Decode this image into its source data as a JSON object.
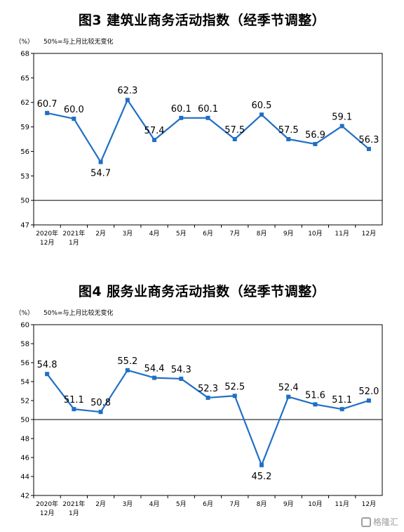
{
  "chart_data": [
    {
      "type": "line",
      "title": "图3  建筑业商务活动指数（经季节调整）",
      "unit": "（%）",
      "note": "50%=与上月比较无变化",
      "categories": [
        [
          "2020年",
          "12月"
        ],
        [
          "2021年",
          "1月"
        ],
        [
          "2月"
        ],
        [
          "3月"
        ],
        [
          "4月"
        ],
        [
          "5月"
        ],
        [
          "6月"
        ],
        [
          "7月"
        ],
        [
          "8月"
        ],
        [
          "9月"
        ],
        [
          "10月"
        ],
        [
          "11月"
        ],
        [
          "12月"
        ]
      ],
      "values": [
        60.7,
        60.0,
        54.7,
        62.3,
        57.4,
        60.1,
        60.1,
        57.5,
        60.5,
        57.5,
        56.9,
        59.1,
        56.3
      ],
      "labels": [
        "60.7",
        "60.0",
        "54.7",
        "62.3",
        "57.4",
        "60.1",
        "60.1",
        "57.5",
        "60.5",
        "57.5",
        "56.9",
        "59.1",
        "56.3"
      ],
      "label_pos": [
        "above",
        "above",
        "below",
        "above",
        "above",
        "above",
        "above",
        "above",
        "above",
        "above",
        "above",
        "above",
        "above"
      ],
      "yticks": [
        "68",
        "65",
        "62",
        "59",
        "56",
        "53",
        "50",
        "47"
      ],
      "ylim": [
        47,
        68
      ],
      "reference": 50,
      "color": "#1f6fc5"
    },
    {
      "type": "line",
      "title": "图4  服务业商务活动指数（经季节调整）",
      "unit": "（%）",
      "note": "50%=与上月比较无变化",
      "categories": [
        [
          "2020年",
          "12月"
        ],
        [
          "2021年",
          "1月"
        ],
        [
          "2月"
        ],
        [
          "3月"
        ],
        [
          "4月"
        ],
        [
          "5月"
        ],
        [
          "6月"
        ],
        [
          "7月"
        ],
        [
          "8月"
        ],
        [
          "9月"
        ],
        [
          "10月"
        ],
        [
          "11月"
        ],
        [
          "12月"
        ]
      ],
      "values": [
        54.8,
        51.1,
        50.8,
        55.2,
        54.4,
        54.3,
        52.3,
        52.5,
        45.2,
        52.4,
        51.6,
        51.1,
        52.0
      ],
      "labels": [
        "54.8",
        "51.1",
        "50.8",
        "55.2",
        "54.4",
        "54.3",
        "52.3",
        "52.5",
        "45.2",
        "52.4",
        "51.6",
        "51.1",
        "52.0"
      ],
      "label_pos": [
        "above",
        "above",
        "above",
        "above",
        "above",
        "above",
        "above",
        "above",
        "below",
        "above",
        "above",
        "above",
        "above"
      ],
      "yticks": [
        "60",
        "58",
        "56",
        "54",
        "52",
        "50",
        "48",
        "46",
        "44",
        "42"
      ],
      "ylim": [
        42,
        60
      ],
      "reference": 50,
      "color": "#1f6fc5"
    }
  ],
  "watermark": "格隆汇"
}
